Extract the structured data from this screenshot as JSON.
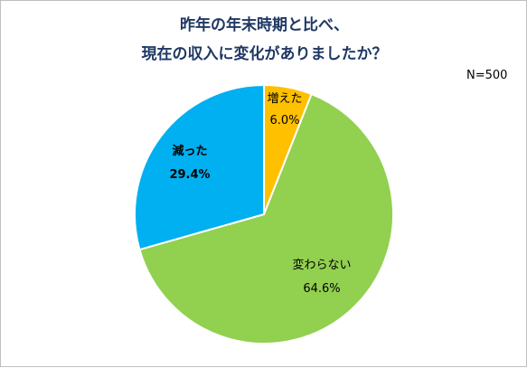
{
  "chart_data": {
    "type": "pie",
    "title_lines": [
      "昨年の年末時期と比べ、",
      "現在の収入に変化がありましたか？"
    ],
    "sample_size": "N=500",
    "slices": [
      {
        "label": "増えた",
        "value": 6.0,
        "value_text": "6.0%",
        "color": "#ffc000"
      },
      {
        "label": "変わらない",
        "value": 64.6,
        "value_text": "64.6%",
        "color": "#92d050"
      },
      {
        "label": "減った",
        "value": 29.4,
        "value_text": "29.4%",
        "color": "#00b0f0"
      }
    ],
    "start_angle": "12 o'clock",
    "direction": "clockwise",
    "legend": "none"
  }
}
